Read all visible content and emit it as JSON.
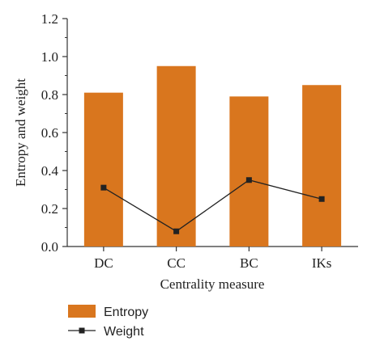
{
  "chart_data": {
    "type": "bar",
    "categories": [
      "DC",
      "CC",
      "BC",
      "IKs"
    ],
    "series": [
      {
        "name": "Entropy",
        "kind": "bar",
        "color": "#D9761E",
        "values": [
          0.81,
          0.95,
          0.79,
          0.85
        ]
      },
      {
        "name": "Weight",
        "kind": "line",
        "color": "#222222",
        "values": [
          0.31,
          0.08,
          0.35,
          0.25
        ]
      }
    ],
    "title": "",
    "xlabel": "Centrality measure",
    "ylabel": "Entropy and weight",
    "ylim": [
      0,
      1.2
    ],
    "yticks": [
      "0.0",
      "0.2",
      "0.4",
      "0.6",
      "0.8",
      "1.0",
      "1.2"
    ],
    "grid": false,
    "legend": "bottom-left"
  }
}
